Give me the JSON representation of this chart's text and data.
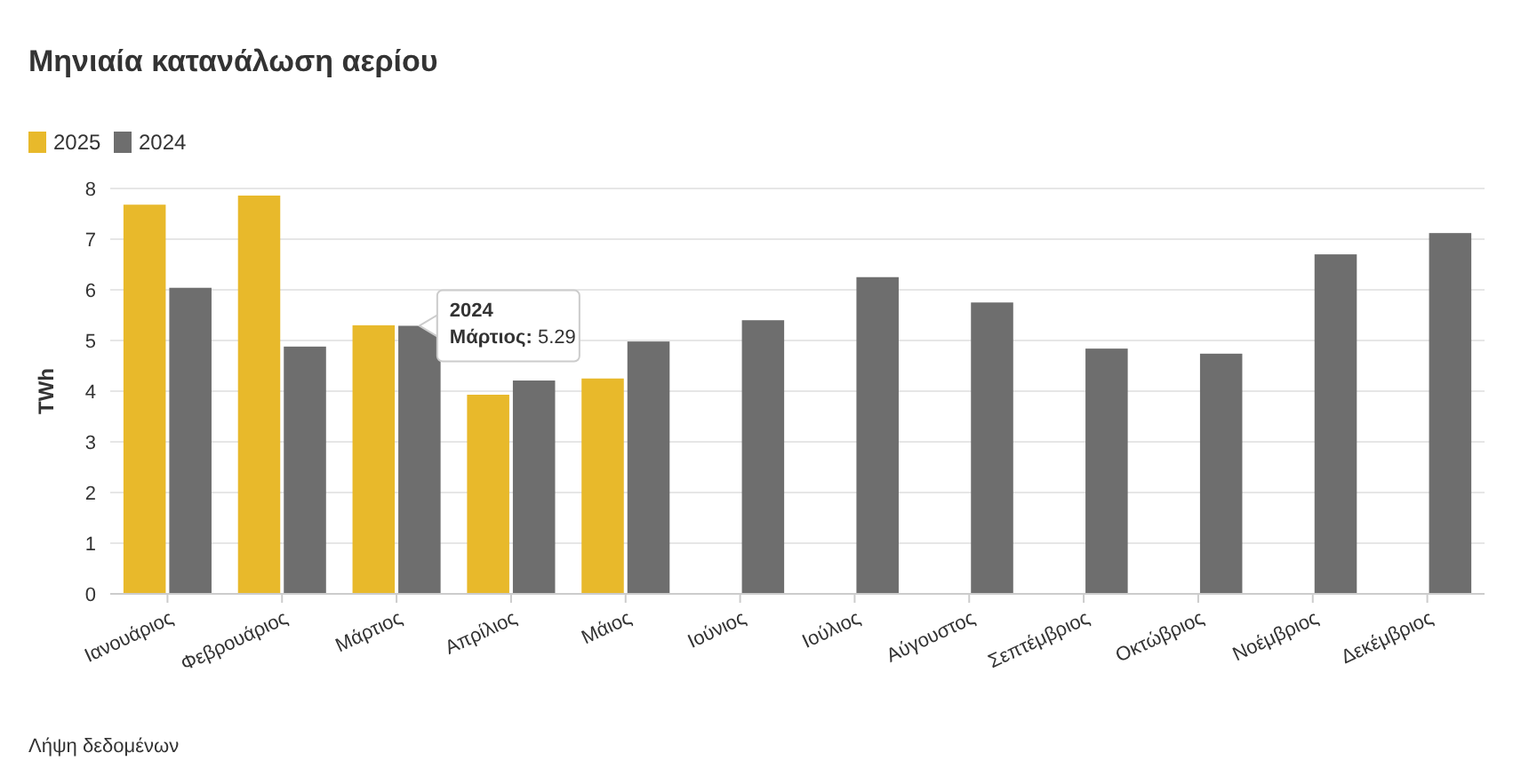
{
  "chart_data": {
    "type": "bar",
    "title": "Μηνιαία κατανάλωση αερίου",
    "ylabel": "TWh",
    "categories": [
      "Ιανουάριος",
      "Φεβρουάριος",
      "Μάρτιος",
      "Απρίλιος",
      "Μάιος",
      "Ιούνιος",
      "Ιούλιος",
      "Αύγουστος",
      "Σεπτέμβριος",
      "Οκτώβριος",
      "Νοέμβριος",
      "Δεκέμβριος"
    ],
    "series": [
      {
        "name": "2025",
        "color": "#e8b92b",
        "values": [
          7.68,
          7.86,
          5.3,
          3.93,
          4.25,
          null,
          null,
          null,
          null,
          null,
          null,
          null
        ]
      },
      {
        "name": "2024",
        "color": "#6e6e6e",
        "values": [
          6.04,
          4.88,
          5.29,
          4.21,
          4.98,
          5.4,
          6.25,
          5.75,
          4.84,
          4.74,
          6.7,
          7.12
        ]
      }
    ],
    "ylim": [
      0,
      8
    ],
    "yticks": [
      0,
      1,
      2,
      3,
      4,
      5,
      6,
      7,
      8
    ],
    "grid": "y",
    "legend": "top left",
    "annotations": [
      {
        "text": "2024\nΜάρτιος: 5.29",
        "x": "Μάρτιος",
        "y": 5.29
      },
      "Λήψη δεδομένων"
    ]
  }
}
